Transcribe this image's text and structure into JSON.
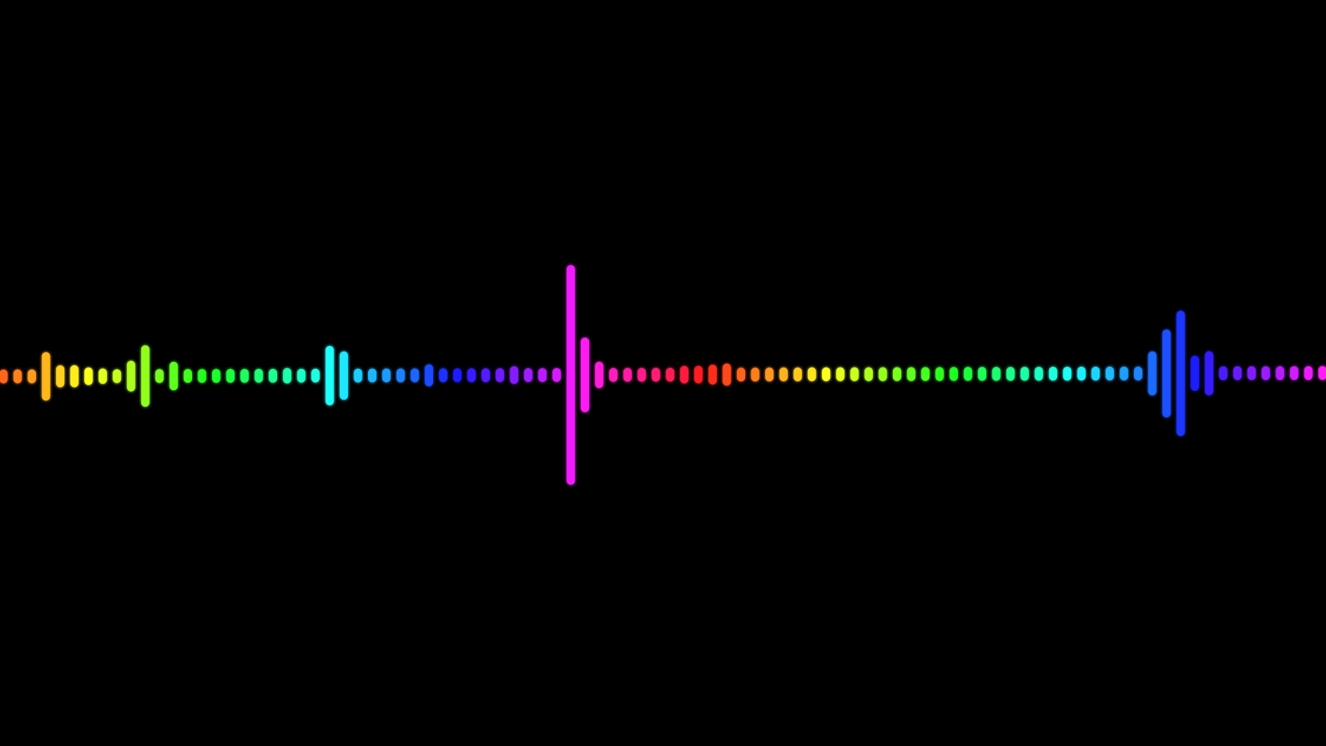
{
  "screen": {
    "background_color": "#000000"
  },
  "visualizer": {
    "style": "rainbow-audio-waveform",
    "bar_shape": "rounded-pill",
    "glow": true,
    "hue_cycle": {
      "start_hue": 20,
      "hue_per_bar": 6.9,
      "saturation": 100,
      "lightness": 55
    },
    "levels": [
      0.05,
      0.05,
      0.05,
      0.22,
      0.1,
      0.1,
      0.08,
      0.07,
      0.06,
      0.14,
      0.28,
      0.06,
      0.13,
      0.05,
      0.05,
      0.05,
      0.05,
      0.05,
      0.06,
      0.06,
      0.07,
      0.05,
      0.05,
      0.27,
      0.22,
      0.05,
      0.05,
      0.05,
      0.05,
      0.06,
      0.1,
      0.05,
      0.05,
      0.05,
      0.05,
      0.05,
      0.08,
      0.05,
      0.05,
      0.06,
      1.0,
      0.34,
      0.12,
      0.05,
      0.05,
      0.05,
      0.05,
      0.05,
      0.08,
      0.08,
      0.09,
      0.1,
      0.05,
      0.05,
      0.05,
      0.05,
      0.05,
      0.05,
      0.05,
      0.05,
      0.06,
      0.05,
      0.06,
      0.05,
      0.05,
      0.05,
      0.05,
      0.05,
      0.05,
      0.05,
      0.05,
      0.05,
      0.05,
      0.05,
      0.06,
      0.05,
      0.05,
      0.05,
      0.05,
      0.05,
      0.05,
      0.2,
      0.4,
      0.57,
      0.16,
      0.2,
      0.06,
      0.05,
      0.05,
      0.05,
      0.05,
      0.05,
      0.05,
      0.06
    ]
  }
}
